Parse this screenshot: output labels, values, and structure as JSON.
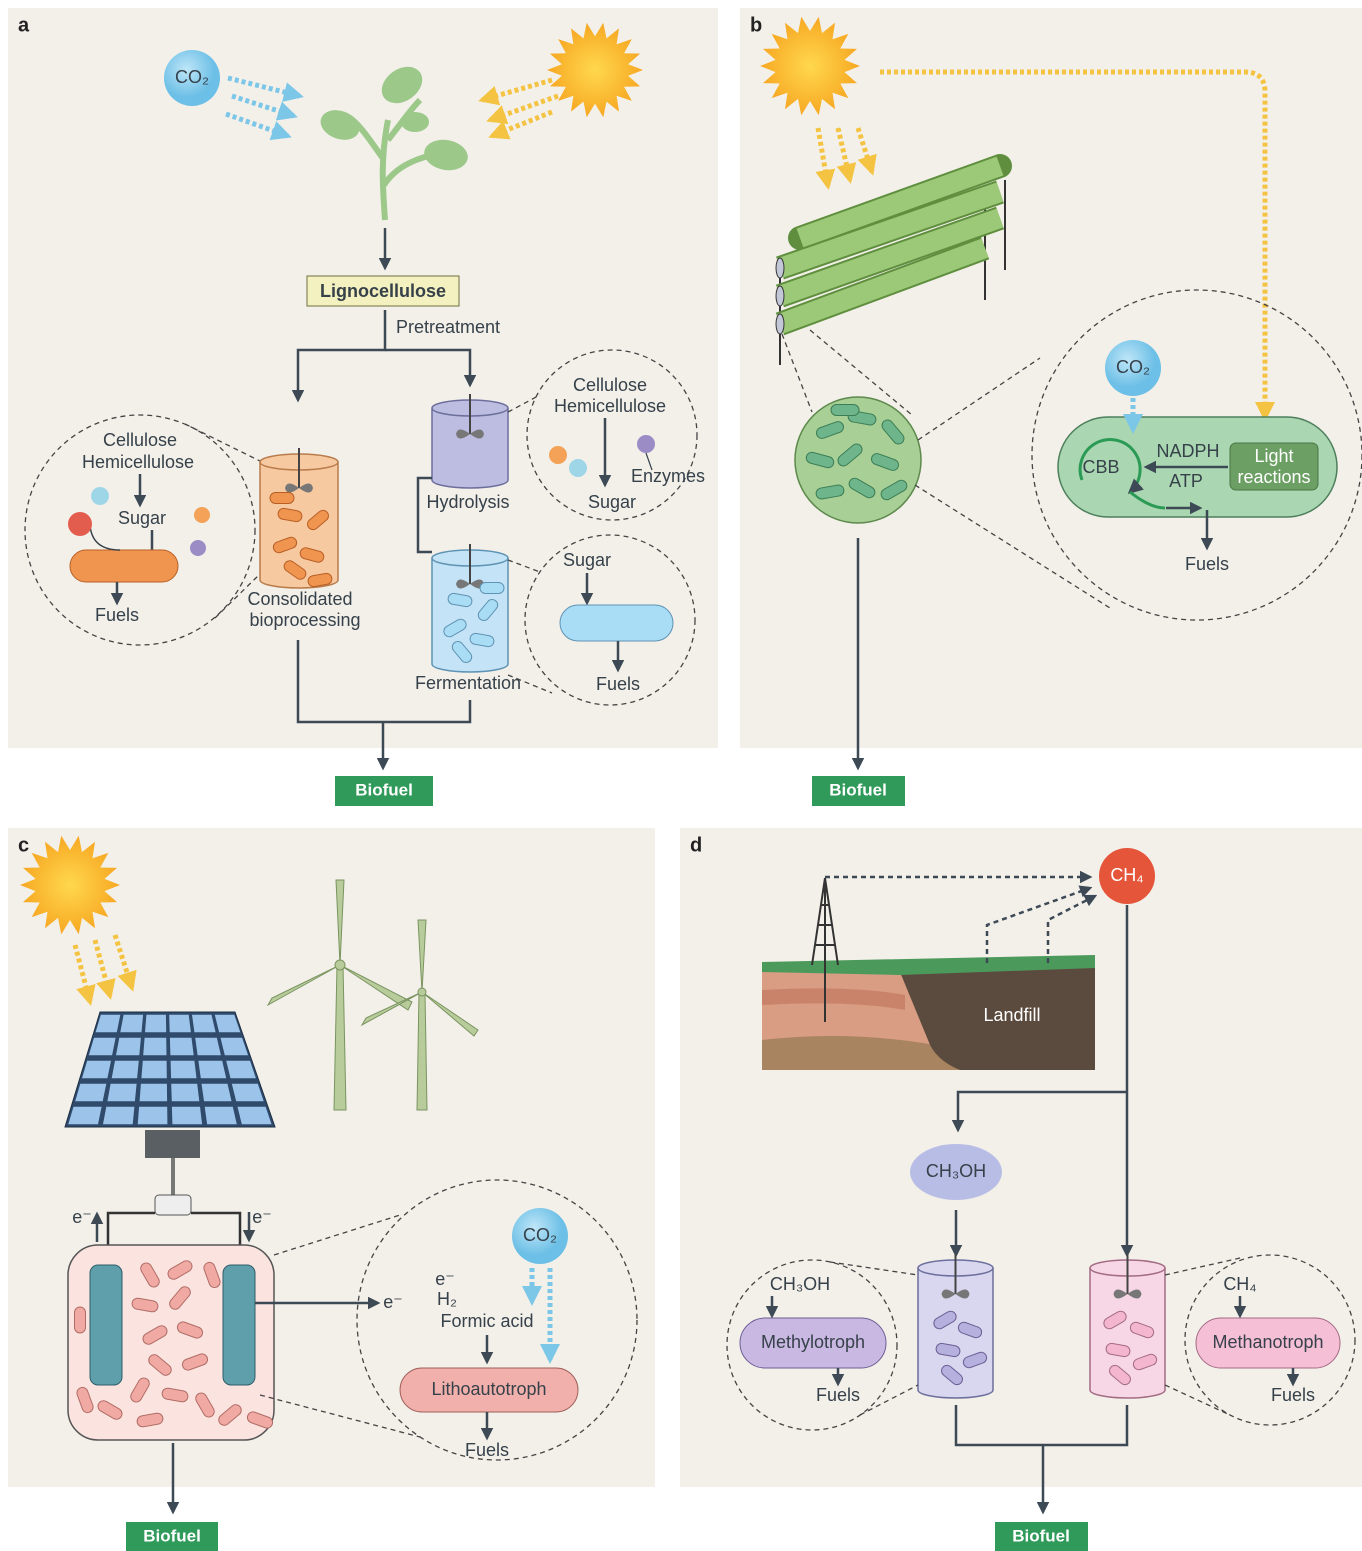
{
  "panel_a": {
    "label": "a",
    "co2": "CO₂",
    "lignocellulose": "Lignocellulose",
    "pretreatment": "Pretreatment",
    "cbp_inset": {
      "cellulose": "Cellulose",
      "hemicellulose": "Hemicellulose",
      "sugar": "Sugar",
      "fuels": "Fuels"
    },
    "cbp_label": [
      "Consolidated",
      "bioprocessing"
    ],
    "hydrolysis_inset": {
      "cellulose": "Cellulose",
      "hemicellulose": "Hemicellulose",
      "sugar": "Sugar",
      "enzymes": "Enzymes"
    },
    "hydrolysis": "Hydrolysis",
    "fermentation": "Fermentation",
    "fermentation_inset": {
      "sugar": "Sugar",
      "fuels": "Fuels"
    },
    "output": "Biofuel"
  },
  "panel_b": {
    "label": "b",
    "co2": "CO₂",
    "cbb": "CBB",
    "nadph": "NADPH",
    "atp": "ATP",
    "light_reactions": [
      "Light",
      "reactions"
    ],
    "fuels": "Fuels",
    "output": "Biofuel"
  },
  "panel_c": {
    "label": "c",
    "electrode_left": "e⁻",
    "electrode_right": "e⁻",
    "current": "e⁻",
    "donors": [
      "e⁻",
      "H₂",
      "Formic acid"
    ],
    "co2": "CO₂",
    "organism": "Lithoautotroph",
    "fuels": "Fuels",
    "output": "Biofuel"
  },
  "panel_d": {
    "label": "d",
    "ch4": "CH₄",
    "landfill": "Landfill",
    "methanol": "CH₃OH",
    "methylotroph_inset": {
      "substrate": "CH₃OH",
      "organism": "Methylotroph",
      "fuels": "Fuels"
    },
    "methanotroph_inset": {
      "substrate": "CH₄",
      "organism": "Methanotroph",
      "fuels": "Fuels"
    },
    "output": "Biofuel"
  }
}
